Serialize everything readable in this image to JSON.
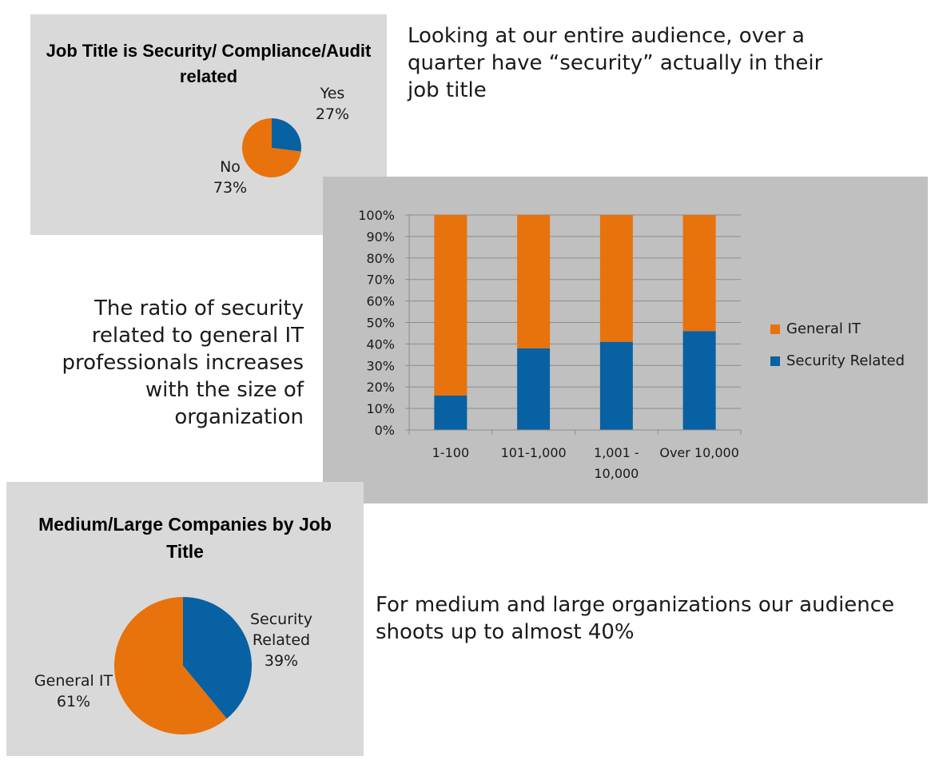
{
  "colors": {
    "orange": "#e8720c",
    "blue": "#0861a2"
  },
  "captions": {
    "top": "Looking at our entire audience, over a quarter have “security” actually in their job title",
    "middle": "The ratio of security related to general IT professionals increases with the size of organization",
    "bottom": "For medium and large organizations our audience shoots up to almost 40%"
  },
  "chart_data": [
    {
      "type": "pie",
      "title": "Job Title is Security/ Compliance/Audit related",
      "labels": [
        "Yes",
        "No"
      ],
      "values": [
        27,
        73
      ],
      "value_labels": [
        "27%",
        "73%"
      ],
      "colors": [
        "#0861a2",
        "#e8720c"
      ]
    },
    {
      "type": "bar",
      "stacked": true,
      "categories": [
        "1-100",
        "101-1,000",
        "1,001 - 10,000",
        "Over 10,000"
      ],
      "series": [
        {
          "name": "Security Related",
          "values": [
            16,
            38,
            41,
            46
          ],
          "color": "#0861a2"
        },
        {
          "name": "General IT",
          "values": [
            84,
            62,
            59,
            54
          ],
          "color": "#e8720c"
        }
      ],
      "ylim": [
        0,
        100
      ],
      "yticks": [
        "0%",
        "10%",
        "20%",
        "30%",
        "40%",
        "50%",
        "60%",
        "70%",
        "80%",
        "90%",
        "100%"
      ],
      "grid": true,
      "legend": [
        "General IT",
        "Security Related"
      ],
      "legend_position": "right"
    },
    {
      "type": "pie",
      "title": "Medium/Large Companies by Job Title",
      "labels": [
        "Security Related",
        "General IT"
      ],
      "values": [
        39,
        61
      ],
      "value_labels": [
        "39%",
        "61%"
      ],
      "colors": [
        "#0861a2",
        "#e8720c"
      ]
    }
  ]
}
